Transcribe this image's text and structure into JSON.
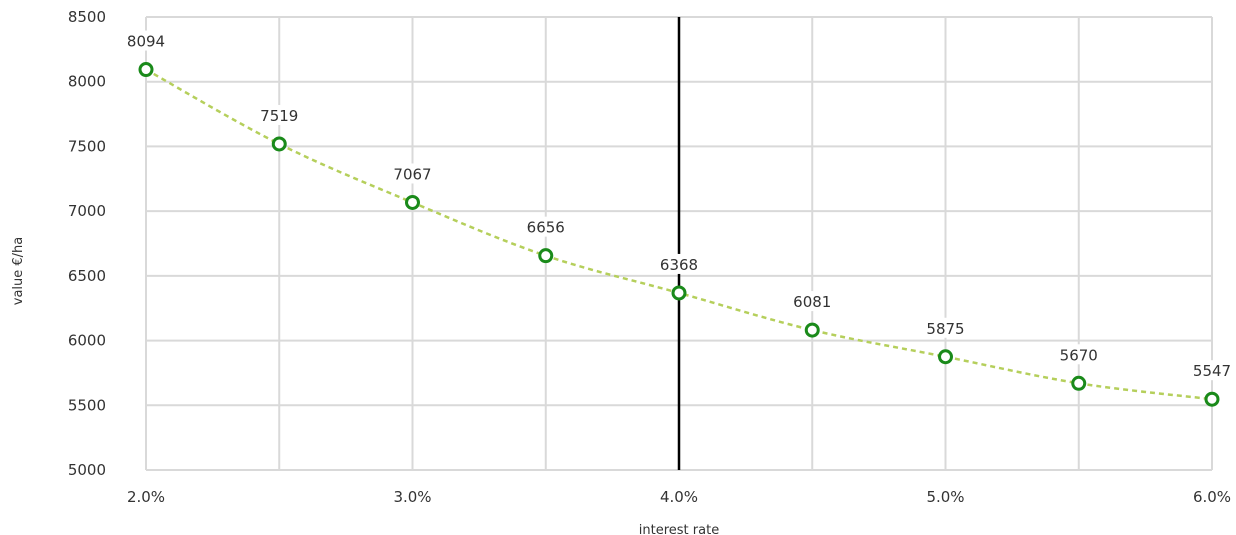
{
  "chart_data": {
    "type": "line",
    "title": "",
    "xlabel": "interest rate",
    "ylabel": "value €/ha",
    "x": [
      2.0,
      2.5,
      3.0,
      3.5,
      4.0,
      4.5,
      5.0,
      5.5,
      6.0
    ],
    "series": [
      {
        "values": [
          8094,
          7519,
          7067,
          6656,
          6368,
          6081,
          5875,
          5670,
          5547
        ]
      }
    ],
    "xlim": [
      2.0,
      6.0
    ],
    "ylim": [
      5000,
      8500
    ],
    "x_ticks": [
      2.0,
      2.5,
      3.0,
      3.5,
      4.0,
      4.5,
      5.0,
      5.5,
      6.0
    ],
    "x_tick_labels": [
      "2.0%",
      "3.0%",
      "4.0%",
      "5.0%",
      "6.0%"
    ],
    "x_tick_label_values": [
      2.0,
      3.0,
      4.0,
      5.0,
      6.0
    ],
    "y_ticks": [
      5000,
      5500,
      6000,
      6500,
      7000,
      7500,
      8000,
      8500
    ],
    "reference_line_x": 4.0,
    "grid": true,
    "data_labels": true,
    "colors": {
      "line": "#b5cf5b",
      "marker": "#1a8a1a",
      "grid": "#d9d9d9",
      "reference": "#000000"
    }
  }
}
